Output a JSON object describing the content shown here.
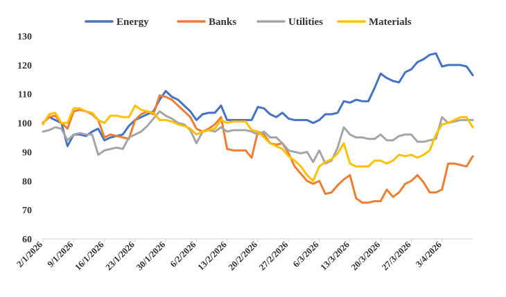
{
  "chart_data": {
    "type": "line",
    "title": "",
    "xlabel": "",
    "ylabel": "",
    "ylim": [
      60,
      130
    ],
    "yticks": [
      60,
      70,
      80,
      90,
      100,
      110,
      120,
      130
    ],
    "grid": false,
    "legend_position": "top",
    "x_ticks": [
      "2/1/2026",
      "9/1/2026",
      "16/1/2026",
      "23/1/2026",
      "30/1/2026",
      "6/2/2026",
      "13/2/2026",
      "20/2/2026",
      "27/2/2026",
      "6/3/2026",
      "13/3/2026",
      "20/3/2026",
      "27/3/2026",
      "3/4/2026"
    ],
    "x_tick_positions": [
      0,
      5,
      10,
      15,
      20,
      25,
      30,
      35,
      40,
      45,
      50,
      55,
      60,
      65
    ],
    "x_range": [
      0,
      70
    ],
    "series": [
      {
        "name": "Energy",
        "color": "#4472C4",
        "x": [
          0,
          1,
          2,
          3,
          4,
          5,
          6,
          7,
          8,
          9,
          10,
          11,
          12,
          13,
          14,
          15,
          16,
          17,
          18,
          19,
          20,
          21,
          22,
          23,
          24,
          25,
          26,
          27,
          28,
          29,
          30,
          31,
          32,
          33,
          34,
          35,
          36,
          37,
          38,
          39,
          40,
          41,
          42,
          43,
          44,
          45,
          46,
          47,
          48,
          49,
          50,
          51,
          52,
          53,
          54,
          55,
          56,
          57,
          58,
          59,
          60,
          61,
          62,
          63,
          64,
          65,
          66,
          67,
          68,
          69,
          70
        ],
        "values": [
          100,
          102,
          101,
          100,
          92,
          96,
          96,
          95.5,
          97,
          98,
          94,
          95,
          95.5,
          96,
          99,
          101,
          102,
          103,
          104,
          108,
          111,
          109,
          108,
          106,
          104,
          101,
          103,
          103.5,
          103.5,
          106,
          101,
          101,
          101,
          101,
          101,
          105.5,
          105,
          103,
          102,
          103.5,
          101.5,
          101,
          101,
          101,
          100,
          101,
          103,
          103,
          103.5,
          107.5,
          107,
          108,
          107.5,
          107.5,
          112,
          117,
          115.5,
          114.5,
          114,
          117.5,
          118.5,
          121,
          122,
          123.5,
          124,
          119.5,
          120,
          120,
          120,
          119.5,
          116.5
        ]
      },
      {
        "name": "Banks",
        "color": "#ED7D31",
        "x": [
          0,
          1,
          2,
          3,
          4,
          5,
          6,
          7,
          8,
          9,
          10,
          11,
          12,
          13,
          14,
          15,
          16,
          17,
          18,
          19,
          20,
          21,
          22,
          23,
          24,
          25,
          26,
          27,
          28,
          29,
          30,
          31,
          32,
          33,
          34,
          35,
          36,
          37,
          38,
          39,
          40,
          41,
          42,
          43,
          44,
          45,
          46,
          47,
          48,
          49,
          50,
          51,
          52,
          53,
          54,
          55,
          56,
          57,
          58,
          59,
          60,
          61,
          62,
          63,
          64,
          65,
          66,
          67,
          68,
          69,
          70
        ],
        "values": [
          100,
          102,
          102.5,
          100,
          98,
          104,
          104.5,
          104,
          103,
          101,
          95,
          96,
          95.5,
          95,
          94.5,
          101,
          103,
          104,
          103,
          109.5,
          109,
          108,
          106,
          104,
          102,
          98,
          97,
          98,
          99.5,
          102,
          91,
          90.5,
          90.5,
          90.5,
          88,
          97,
          96,
          93,
          92.5,
          93,
          89.5,
          85,
          82.5,
          80,
          79,
          80,
          75.5,
          76,
          78.5,
          80.5,
          82,
          74,
          72.5,
          72.5,
          73,
          73,
          77,
          74.5,
          76,
          79,
          80,
          82,
          79.5,
          76,
          76,
          77,
          86,
          86,
          85.5,
          85,
          88.5
        ]
      },
      {
        "name": "Utilities",
        "color": "#A5A5A5",
        "x": [
          0,
          1,
          2,
          3,
          4,
          5,
          6,
          7,
          8,
          9,
          10,
          11,
          12,
          13,
          14,
          15,
          16,
          17,
          18,
          19,
          20,
          21,
          22,
          23,
          24,
          25,
          26,
          27,
          28,
          29,
          30,
          31,
          32,
          33,
          34,
          35,
          36,
          37,
          38,
          39,
          40,
          41,
          42,
          43,
          44,
          45,
          46,
          47,
          48,
          49,
          50,
          51,
          52,
          53,
          54,
          55,
          56,
          57,
          58,
          59,
          60,
          61,
          62,
          63,
          64,
          65,
          66,
          67,
          68,
          69,
          70
        ],
        "values": [
          97,
          97.5,
          98.5,
          98,
          94,
          96,
          96.5,
          96,
          96,
          89,
          90.5,
          91,
          91.5,
          91,
          95,
          96,
          97,
          99,
          101.5,
          104,
          102.5,
          101.5,
          100,
          99.5,
          97.5,
          93,
          97,
          97.5,
          97,
          98.5,
          97,
          97.5,
          97.5,
          97.5,
          97,
          96,
          97,
          95,
          95,
          93,
          90.5,
          90,
          89.5,
          90,
          86.5,
          90.5,
          86,
          87,
          91.5,
          98.5,
          96,
          95,
          95,
          94.5,
          94.5,
          96,
          94,
          94,
          95.5,
          96,
          96,
          93.5,
          93.5,
          94,
          94.5,
          102,
          100,
          100.5,
          101,
          101,
          101
        ]
      },
      {
        "name": "Materials",
        "color": "#FFC000",
        "x": [
          0,
          1,
          2,
          3,
          4,
          5,
          6,
          7,
          8,
          9,
          10,
          11,
          12,
          13,
          14,
          15,
          16,
          17,
          18,
          19,
          20,
          21,
          22,
          23,
          24,
          25,
          26,
          27,
          28,
          29,
          30,
          31,
          32,
          33,
          34,
          35,
          36,
          37,
          38,
          39,
          40,
          41,
          42,
          43,
          44,
          45,
          46,
          47,
          48,
          49,
          50,
          51,
          52,
          53,
          54,
          55,
          56,
          57,
          58,
          59,
          60,
          61,
          62,
          63,
          64,
          65,
          66,
          67,
          68,
          69,
          70
        ],
        "values": [
          99.5,
          103,
          103.5,
          100,
          100,
          105,
          105,
          104,
          103.5,
          101,
          100,
          102.5,
          102.5,
          102,
          102,
          106,
          104.5,
          104,
          103.5,
          101,
          101,
          100.5,
          99.5,
          99,
          98,
          96,
          97,
          97.5,
          98,
          101,
          100,
          100.5,
          100.5,
          100.5,
          97.5,
          97,
          95,
          93,
          92,
          91,
          88.5,
          87,
          85,
          82,
          80,
          85,
          86.5,
          87.5,
          89.5,
          93,
          86,
          85,
          85,
          85,
          87,
          87,
          86,
          87,
          89,
          88.5,
          89,
          88,
          89,
          90.5,
          96,
          99.5,
          100,
          101,
          102,
          102,
          98.5
        ]
      }
    ]
  }
}
